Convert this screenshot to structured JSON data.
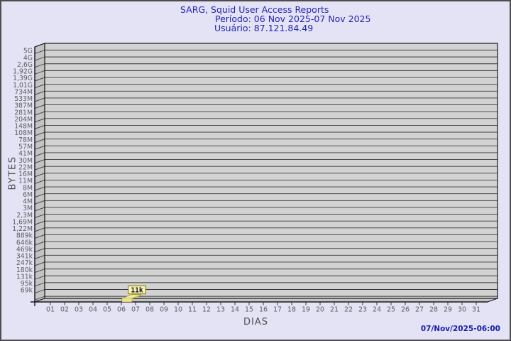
{
  "page": {
    "background": "#e3e3f5",
    "border_color": "#4d4d4d"
  },
  "header": {
    "title": "SARG, Squid User Access Reports",
    "period": "Período: 06 Nov 2025-07 Nov 2025",
    "user": "Usuário: 87.121.84.49",
    "text_color": "#2424b4"
  },
  "footer": {
    "timestamp": "07/Nov/2025-06:00",
    "text_color": "#1b1bb0"
  },
  "chart_data": {
    "type": "bar",
    "title": "SARG, Squid User Access Reports",
    "subtitle_lines": [
      "Período: 06 Nov 2025-07 Nov 2025",
      "Usuário: 87.121.84.49"
    ],
    "xlabel": "DIAS",
    "ylabel": "BYTES",
    "y_scale": "log",
    "grid": true,
    "legend_position": "none",
    "x_tick_labels": [
      "01",
      "02",
      "03",
      "04",
      "05",
      "06",
      "07",
      "08",
      "09",
      "10",
      "11",
      "12",
      "13",
      "14",
      "15",
      "16",
      "17",
      "18",
      "19",
      "20",
      "21",
      "22",
      "23",
      "24",
      "25",
      "26",
      "27",
      "28",
      "29",
      "30",
      "31"
    ],
    "y_tick_labels": [
      "5G",
      "4G",
      "2,6G",
      "1,92G",
      "1,39G",
      "1,01G",
      "734M",
      "533M",
      "387M",
      "281M",
      "204M",
      "148M",
      "108M",
      "78M",
      "57M",
      "41M",
      "30M",
      "22M",
      "16M",
      "11M",
      "8M",
      "6M",
      "4M",
      "3M",
      "2,3M",
      "1,69M",
      "1,22M",
      "889k",
      "646k",
      "469k",
      "341k",
      "247k",
      "180k",
      "131k",
      "95k",
      "69k"
    ],
    "values": [
      {
        "day": "07",
        "bytes_label": "11k"
      }
    ],
    "annotations": [
      {
        "x": "07",
        "text": "11k"
      }
    ],
    "colors": {
      "plot_face": "#d2d2d2",
      "wall": "#c3c3c3",
      "floor": "#c3c3c3",
      "gridline": "#3a3a3a",
      "frame": "#1a1a1a",
      "axis_text": "#5d5d5d",
      "bar_top": "#f4eca0",
      "bar_front": "#efe390",
      "bar_side": "#d9c75f",
      "bar_edge": "#9a8d20",
      "annotation_bg": "#f9f2bd",
      "annotation_border": "#8c8200",
      "annotation_text": "#111111"
    }
  }
}
